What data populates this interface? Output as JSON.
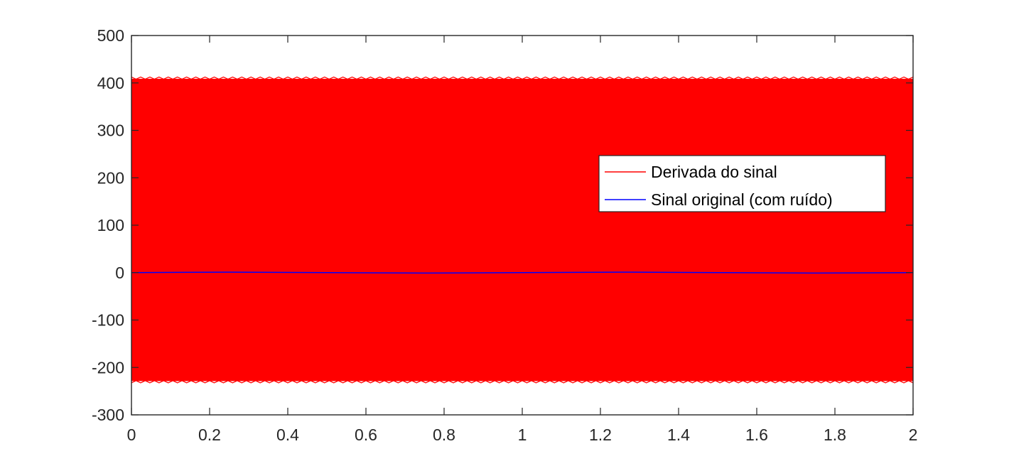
{
  "chart_data": {
    "type": "line",
    "title": "",
    "xlabel": "",
    "ylabel": "",
    "xlim": [
      0,
      2
    ],
    "ylim": [
      -300,
      500
    ],
    "xticks": [
      0,
      0.2,
      0.4,
      0.6,
      0.8,
      1,
      1.2,
      1.4,
      1.6,
      1.8,
      2
    ],
    "xtick_labels": [
      "0",
      "0.2",
      "0.4",
      "0.6",
      "0.8",
      "1",
      "1.2",
      "1.4",
      "1.6",
      "1.8",
      "2"
    ],
    "yticks": [
      -300,
      -200,
      -100,
      0,
      100,
      200,
      300,
      400,
      500
    ],
    "ytick_labels": [
      "-300",
      "-200",
      "-100",
      "0",
      "100",
      "200",
      "300",
      "400",
      "500"
    ],
    "grid": false,
    "legend_position": "center-right",
    "series": [
      {
        "name": "Derivada do sinal",
        "color": "#ff0000",
        "x": [
          0,
          0.2,
          0.4,
          0.6,
          0.8,
          1,
          1.2,
          1.4,
          1.6,
          1.8,
          2
        ],
        "y_max": [
          408,
          408,
          408,
          408,
          408,
          408,
          408,
          408,
          408,
          408,
          408
        ],
        "y_min": [
          -228,
          -228,
          -228,
          -228,
          -228,
          -228,
          -228,
          -228,
          -228,
          -228,
          -228
        ]
      },
      {
        "name": "Sinal original (com ruído)",
        "color": "#0000ff",
        "x": [
          0,
          0.25,
          0.5,
          0.75,
          1,
          1.25,
          1.5,
          1.75,
          2
        ],
        "y": [
          0,
          1,
          0,
          -1,
          0,
          1,
          0,
          -1,
          0
        ]
      }
    ]
  }
}
